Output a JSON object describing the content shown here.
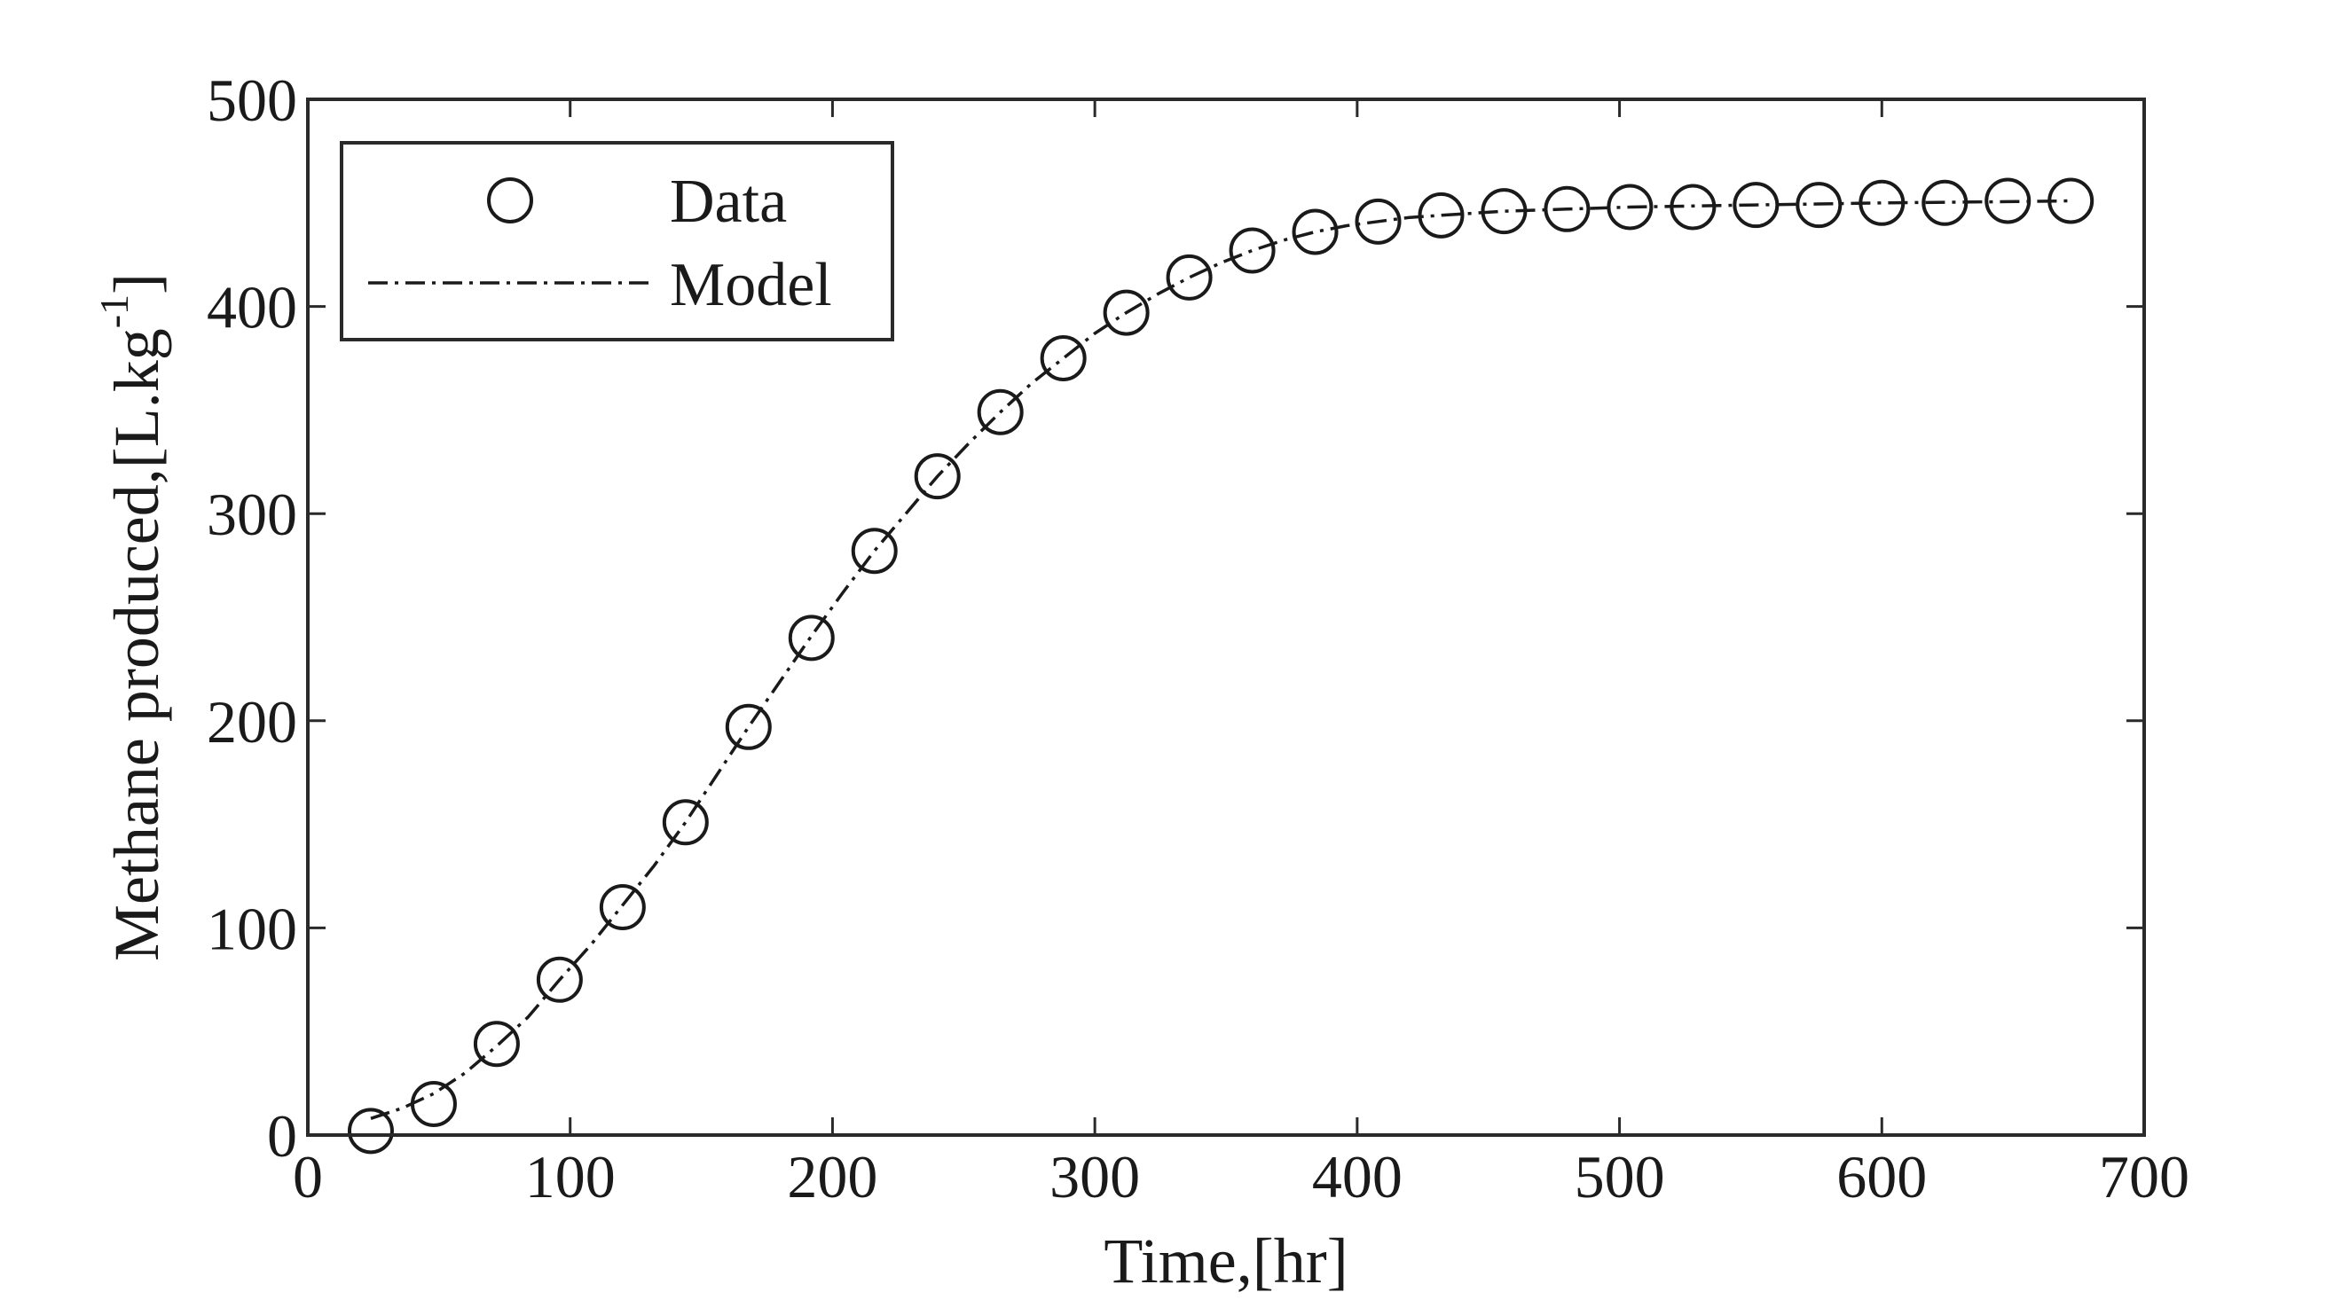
{
  "chart_data": {
    "type": "line",
    "xlabel": "Time,[hr]",
    "ylabel_main": "Methane produced,[L.kg",
    "ylabel_sup": "-1",
    "ylabel_end": "]",
    "xlim": [
      0,
      700
    ],
    "ylim": [
      0,
      500
    ],
    "xticks": [
      0,
      100,
      200,
      300,
      400,
      500,
      600,
      700
    ],
    "yticks": [
      0,
      100,
      200,
      300,
      400,
      500
    ],
    "grid": false,
    "legend_position": "top-left",
    "series": [
      {
        "name": "Data",
        "style": "markers-open-circle",
        "color": "#1a1a1a",
        "x": [
          24,
          48,
          72,
          96,
          120,
          144,
          168,
          192,
          216,
          240,
          264,
          288,
          312,
          336,
          360,
          384,
          408,
          432,
          456,
          480,
          504,
          528,
          552,
          576,
          600,
          624,
          648,
          672
        ],
        "y": [
          2,
          15,
          44,
          75,
          110,
          151,
          197,
          240,
          282,
          318,
          349,
          375,
          397,
          414,
          427,
          436,
          441,
          444,
          446,
          447,
          448,
          448,
          449,
          449,
          450,
          450,
          451,
          451
        ]
      },
      {
        "name": "Model",
        "style": "dash-dot-line",
        "color": "#1a1a1a",
        "x": [
          24,
          36,
          48,
          60,
          72,
          84,
          96,
          108,
          120,
          132,
          144,
          156,
          168,
          180,
          192,
          204,
          216,
          228,
          240,
          252,
          264,
          276,
          288,
          300,
          312,
          324,
          336,
          348,
          360,
          372,
          384,
          396,
          408,
          420,
          432,
          444,
          456,
          468,
          480,
          504,
          528,
          552,
          576,
          600,
          624,
          648,
          672
        ],
        "y": [
          8,
          13,
          20,
          30,
          43,
          57,
          75,
          92,
          111,
          130,
          151,
          174,
          197,
          219,
          241,
          262,
          282,
          300,
          318,
          334,
          349,
          363,
          375,
          387,
          397,
          406,
          414,
          421,
          427,
          432,
          436,
          439,
          441,
          443,
          444,
          445,
          446,
          446.5,
          447,
          448,
          448.5,
          449,
          449.5,
          450,
          450.3,
          450.6,
          451
        ]
      }
    ]
  }
}
